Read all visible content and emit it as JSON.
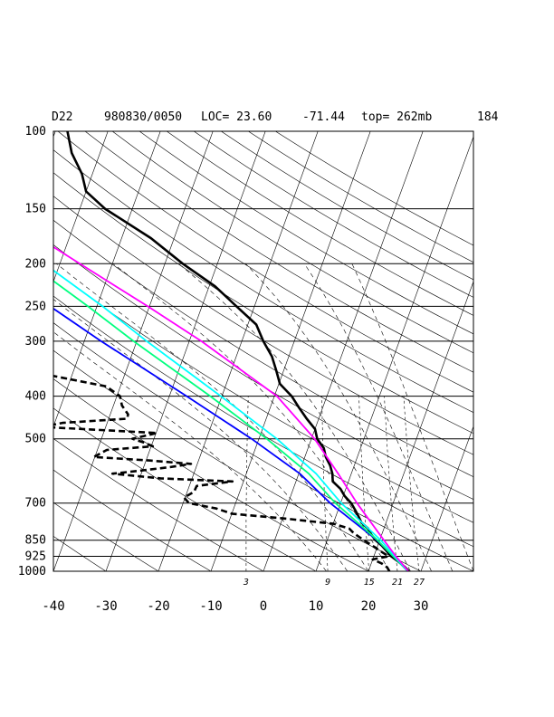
{
  "header": {
    "station": "D22",
    "datetime": "980830/0050",
    "loc": "LOC= 23.60",
    "lon": "-71.44",
    "top": "top= 262mb",
    "extra": "184"
  },
  "chart_data": {
    "type": "line",
    "subtype": "skew-t log-p sounding",
    "title": "",
    "xlabel": "",
    "ylabel": "",
    "x_axis": {
      "min": -40,
      "max": 40,
      "ticks": [
        -40,
        -30,
        -20,
        -10,
        0,
        10,
        20,
        30
      ]
    },
    "y_axis": {
      "scale": "log",
      "min": 100,
      "max": 1000,
      "reversed": true,
      "ticks": [
        100,
        150,
        200,
        250,
        300,
        400,
        500,
        700,
        850,
        925,
        1000
      ]
    },
    "mixing_ratio_labels": [
      3,
      9,
      15,
      21,
      27
    ],
    "grid": true,
    "series": [
      {
        "style": "solid",
        "color": "#000000",
        "points": [
          [
            1000,
            27.7
          ],
          [
            975,
            26.5
          ],
          [
            950,
            25.0
          ],
          [
            925,
            23.3
          ],
          [
            900,
            22.1
          ],
          [
            875,
            20.8
          ],
          [
            850,
            19.2
          ],
          [
            825,
            18.0
          ],
          [
            800,
            17.0
          ],
          [
            775,
            15.3
          ],
          [
            750,
            14.3
          ],
          [
            725,
            13.2
          ],
          [
            700,
            12.0
          ],
          [
            675,
            10.3
          ],
          [
            650,
            9.0
          ],
          [
            625,
            7.0
          ],
          [
            600,
            6.4
          ],
          [
            575,
            5.4
          ],
          [
            550,
            4.0
          ],
          [
            525,
            3.0
          ],
          [
            500,
            1.1
          ],
          [
            475,
            0.0
          ],
          [
            450,
            -2.3
          ],
          [
            425,
            -4.5
          ],
          [
            400,
            -6.7
          ],
          [
            375,
            -9.8
          ],
          [
            350,
            -11.4
          ],
          [
            325,
            -13.2
          ],
          [
            300,
            -15.9
          ],
          [
            275,
            -18.4
          ],
          [
            250,
            -23.4
          ],
          [
            225,
            -28.9
          ],
          [
            200,
            -36.6
          ],
          [
            175,
            -44.4
          ],
          [
            150,
            -55.2
          ],
          [
            137,
            -60.0
          ],
          [
            125,
            -62.0
          ],
          [
            112,
            -65.4
          ],
          [
            100,
            -67.7
          ]
        ]
      },
      {
        "style": "dashed",
        "color": "#000000",
        "points": [
          [
            1000,
            24.0
          ],
          [
            980,
            23.3
          ],
          [
            960,
            22.0
          ],
          [
            940,
            20.0
          ],
          [
            925,
            22.8
          ],
          [
            900,
            20.9
          ],
          [
            880,
            19.4
          ],
          [
            860,
            17.8
          ],
          [
            840,
            16.2
          ],
          [
            820,
            14.6
          ],
          [
            800,
            13.4
          ],
          [
            780,
            10.1
          ],
          [
            760,
            1.0
          ],
          [
            740,
            -10.0
          ],
          [
            720,
            -13.3
          ],
          [
            700,
            -18.9
          ],
          [
            680,
            -20.2
          ],
          [
            660,
            -18.7
          ],
          [
            640,
            -18.6
          ],
          [
            625,
            -12.1
          ],
          [
            615,
            -26.0
          ],
          [
            600,
            -35.5
          ],
          [
            590,
            -30.0
          ],
          [
            580,
            -25.0
          ],
          [
            570,
            -21.2
          ],
          [
            560,
            -29.5
          ],
          [
            550,
            -40.2
          ],
          [
            530,
            -38.2
          ],
          [
            520,
            -29.7
          ],
          [
            510,
            -31.6
          ],
          [
            500,
            -34.1
          ],
          [
            485,
            -29.8
          ],
          [
            470,
            -52.0
          ],
          [
            460,
            -48.5
          ],
          [
            450,
            -36.5
          ],
          [
            440,
            -36.6
          ],
          [
            420,
            -38.4
          ],
          [
            400,
            -39.4
          ],
          [
            380,
            -42.7
          ],
          [
            360,
            -53.4
          ],
          [
            340,
            -79.9
          ],
          [
            330,
            -75.9
          ],
          [
            320,
            -78.7
          ],
          [
            310,
            -80.2
          ],
          [
            300,
            -79.0
          ],
          [
            290,
            -83.0
          ],
          [
            280,
            -82.7
          ]
        ]
      },
      {
        "style": "solid",
        "color": "#0000ff",
        "points": [
          [
            1000,
            27.5
          ],
          [
            925,
            23.7
          ],
          [
            850,
            19.5
          ],
          [
            700,
            8.0
          ],
          [
            600,
            0.2
          ],
          [
            500,
            -11.4
          ],
          [
            400,
            -26.7
          ],
          [
            300,
            -46.8
          ],
          [
            250,
            -58.9
          ],
          [
            200,
            -72.4
          ],
          [
            150,
            -88.4
          ],
          [
            100,
            -108.9
          ]
        ]
      },
      {
        "style": "solid",
        "color": "#00ff7f",
        "points": [
          [
            1000,
            27.5
          ],
          [
            925,
            23.7
          ],
          [
            850,
            19.6
          ],
          [
            700,
            9.0
          ],
          [
            600,
            1.9
          ],
          [
            500,
            -8.5
          ],
          [
            400,
            -22.2
          ],
          [
            300,
            -40.6
          ],
          [
            250,
            -51.7
          ],
          [
            200,
            -65.7
          ],
          [
            150,
            -83.7
          ],
          [
            100,
            -109.0
          ]
        ]
      },
      {
        "style": "solid",
        "color": "#00ffff",
        "points": [
          [
            1000,
            27.5
          ],
          [
            925,
            24.0
          ],
          [
            850,
            20.2
          ],
          [
            700,
            10.1
          ],
          [
            600,
            3.3
          ],
          [
            500,
            -6.6
          ],
          [
            400,
            -20.2
          ],
          [
            300,
            -38.1
          ],
          [
            250,
            -48.9
          ],
          [
            200,
            -63.0
          ],
          [
            150,
            -81.2
          ],
          [
            100,
            -107.2
          ]
        ]
      },
      {
        "style": "solid",
        "color": "#ff00ff",
        "points": [
          [
            1000,
            27.6
          ],
          [
            925,
            24.2
          ],
          [
            850,
            20.8
          ],
          [
            700,
            13.1
          ],
          [
            600,
            7.5
          ],
          [
            500,
            0.6
          ],
          [
            400,
            -9.5
          ],
          [
            300,
            -27.7
          ],
          [
            250,
            -40.3
          ],
          [
            200,
            -56.2
          ],
          [
            150,
            -76.5
          ],
          [
            100,
            -105.7
          ]
        ]
      }
    ]
  }
}
